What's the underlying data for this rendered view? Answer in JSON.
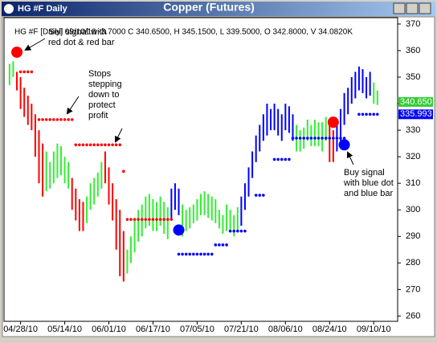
{
  "window_title": "HG #F Daily",
  "chart_data": {
    "type": "hilo",
    "title": "Copper (Futures)",
    "header": "HG #F [Daily] 09/10/10 -3.7000 C 340.6500, H 345.1500, L 339.5000, O 342.8000, V 34.0820K",
    "high": [
      355,
      356,
      352,
      350,
      346,
      343,
      340,
      336,
      330,
      325,
      322,
      318,
      322,
      325,
      324,
      320,
      318,
      312,
      308,
      304,
      303,
      305,
      310,
      312,
      314,
      318,
      322,
      316,
      310,
      304,
      300,
      292,
      285,
      290,
      296,
      300,
      302,
      305,
      306,
      304,
      303,
      305,
      303,
      301,
      308,
      310,
      308,
      302,
      300,
      301,
      302,
      304,
      306,
      307,
      306,
      305,
      304,
      300,
      298,
      302,
      300,
      298,
      301,
      305,
      310,
      316,
      322,
      328,
      332,
      336,
      340,
      338,
      340,
      338,
      336,
      340,
      339,
      336,
      332,
      330,
      331,
      334,
      332,
      334,
      333,
      333,
      335,
      332,
      330,
      332,
      338,
      344,
      346,
      350,
      352,
      354,
      353,
      350,
      352,
      348,
      345
    ],
    "low": [
      347,
      350,
      345,
      338,
      335,
      332,
      330,
      320,
      310,
      305,
      307,
      308,
      310,
      312,
      313,
      310,
      308,
      300,
      296,
      292,
      292,
      295,
      300,
      302,
      305,
      308,
      310,
      302,
      296,
      285,
      275,
      273,
      276,
      280,
      284,
      288,
      290,
      293,
      294,
      292,
      292,
      294,
      291,
      289,
      296,
      300,
      298,
      290,
      292,
      293,
      295,
      296,
      298,
      298,
      297,
      296,
      295,
      293,
      291,
      292,
      292,
      290,
      292,
      294,
      300,
      305,
      312,
      318,
      322,
      326,
      328,
      330,
      330,
      328,
      326,
      330,
      329,
      326,
      322,
      322,
      323,
      326,
      324,
      324,
      324,
      322,
      326,
      318,
      318,
      322,
      326,
      332,
      336,
      340,
      342,
      345,
      344,
      342,
      343,
      340,
      339.5
    ],
    "bar_colors": [
      "#33ee33",
      "#33ee33",
      "#ff0000",
      "#ff0000",
      "#ff0000",
      "#ff0000",
      "#ff0000",
      "#ff0000",
      "#ff0000",
      "#ff0000",
      "#33ee33",
      "#33ee33",
      "#33ee33",
      "#33ee33",
      "#33ee33",
      "#33ee33",
      "#33ee33",
      "#ff0000",
      "#ff0000",
      "#ff0000",
      "#ff0000",
      "#33ee33",
      "#33ee33",
      "#33ee33",
      "#33ee33",
      "#33ee33",
      "#ff0000",
      "#ff0000",
      "#ff0000",
      "#ff0000",
      "#ff0000",
      "#ff0000",
      "#33ee33",
      "#33ee33",
      "#33ee33",
      "#33ee33",
      "#33ee33",
      "#33ee33",
      "#33ee33",
      "#33ee33",
      "#33ee33",
      "#33ee33",
      "#33ee33",
      "#33ee33",
      "#0000ff",
      "#0000ff",
      "#0000ff",
      "#33ee33",
      "#33ee33",
      "#33ee33",
      "#33ee33",
      "#33ee33",
      "#33ee33",
      "#33ee33",
      "#33ee33",
      "#33ee33",
      "#33ee33",
      "#33ee33",
      "#33ee33",
      "#33ee33",
      "#33ee33",
      "#33ee33",
      "#33ee33",
      "#0000ff",
      "#0000ff",
      "#0000ff",
      "#0000ff",
      "#0000ff",
      "#0000ff",
      "#0000ff",
      "#0000ff",
      "#0000ff",
      "#0000ff",
      "#0000ff",
      "#0000ff",
      "#0000ff",
      "#0000ff",
      "#0000ff",
      "#33ee33",
      "#33ee33",
      "#33ee33",
      "#33ee33",
      "#33ee33",
      "#33ee33",
      "#33ee33",
      "#33ee33",
      "#33ee33",
      "#ff0000",
      "#ff0000",
      "#0000ff",
      "#0000ff",
      "#0000ff",
      "#0000ff",
      "#0000ff",
      "#0000ff",
      "#0000ff",
      "#0000ff",
      "#0000ff",
      "#0000ff",
      "#33ee33",
      "#33ee33"
    ],
    "stop_series": [
      {
        "color": "#ff0000",
        "values": [
          null,
          null,
          null,
          352,
          352,
          352,
          352,
          null,
          334,
          334,
          334,
          334,
          334,
          334,
          334,
          334,
          334,
          334,
          324.5,
          324.5,
          324.5,
          324.5,
          324.5,
          324.5,
          324.5,
          324.5,
          324.5,
          324.5,
          324.5,
          324.5,
          324.5,
          314.5,
          296.4,
          296.4,
          296.4,
          296.4,
          296.4,
          296.4,
          296.4,
          296.4,
          296.4,
          296.4,
          296.4,
          296.4,
          296.4,
          null,
          null,
          null,
          null,
          null,
          null,
          null,
          null,
          null,
          null,
          null,
          null,
          null,
          null,
          null,
          null,
          null,
          null,
          null,
          null,
          null,
          null,
          null,
          null,
          null,
          null,
          null,
          null,
          null,
          null,
          null,
          null,
          null,
          null,
          null,
          null,
          null,
          null,
          null,
          null,
          null,
          null,
          null,
          null,
          null,
          null,
          null,
          null,
          null,
          null,
          null,
          null,
          null,
          null,
          null,
          null
        ]
      },
      {
        "color": "#0000ff",
        "values": [
          null,
          null,
          null,
          null,
          null,
          null,
          null,
          null,
          null,
          null,
          null,
          null,
          null,
          null,
          null,
          null,
          null,
          null,
          null,
          null,
          null,
          null,
          null,
          null,
          null,
          null,
          null,
          null,
          null,
          null,
          null,
          null,
          null,
          null,
          null,
          null,
          null,
          null,
          null,
          null,
          null,
          null,
          null,
          null,
          null,
          null,
          283.3,
          283.3,
          283.3,
          283.3,
          283.3,
          283.3,
          283.3,
          283.3,
          283.3,
          283.3,
          286.8,
          286.8,
          286.8,
          286.8,
          292,
          292,
          292,
          292,
          292,
          null,
          null,
          305.5,
          305.5,
          305.5,
          null,
          null,
          319,
          319,
          319,
          319,
          319,
          327,
          327,
          327,
          327,
          327,
          327,
          327,
          327,
          327,
          327,
          327,
          327,
          327,
          327,
          327,
          null,
          null,
          null,
          336,
          336,
          336,
          336,
          336,
          336
        ]
      }
    ],
    "signals": [
      {
        "x": 2,
        "value": 359.4,
        "color": "#ff0000"
      },
      {
        "x": 46,
        "value": 292.4,
        "color": "#0000ff"
      },
      {
        "x": 88,
        "value": 333,
        "color": "#ff0000"
      },
      {
        "x": 91,
        "value": 324.5,
        "color": "#0000ff"
      }
    ],
    "last_labels": [
      {
        "value": 340.65,
        "label": "340.650",
        "color": "#33cc33"
      },
      {
        "value": 335.993,
        "label": "335.993",
        "color": "#0000ff"
      }
    ],
    "annotations": [
      [
        "Sell signal with",
        "red dot & red bar"
      ],
      [
        "Stops",
        "stepping",
        "down to",
        "protect",
        "profit"
      ],
      [
        "Buy signal",
        "with blue dot",
        "and blue bar"
      ]
    ],
    "xlim": [
      -1.5,
      105.5
    ],
    "ylim": [
      258,
      372.4
    ],
    "yticks": [
      260,
      270,
      280,
      290,
      300,
      310,
      320,
      330,
      340,
      350,
      360,
      370
    ],
    "xticks": [
      {
        "value": 3,
        "label": "04/28/10"
      },
      {
        "value": 15,
        "label": "05/14/10"
      },
      {
        "value": 27,
        "label": "06/01/10"
      },
      {
        "value": 39,
        "label": "06/17/10"
      },
      {
        "value": 51,
        "label": "07/05/10"
      },
      {
        "value": 63,
        "label": "07/21/10"
      },
      {
        "value": 75,
        "label": "08/06/10"
      },
      {
        "value": 87,
        "label": "08/24/10"
      },
      {
        "value": 99,
        "label": "09/10/10"
      }
    ]
  }
}
